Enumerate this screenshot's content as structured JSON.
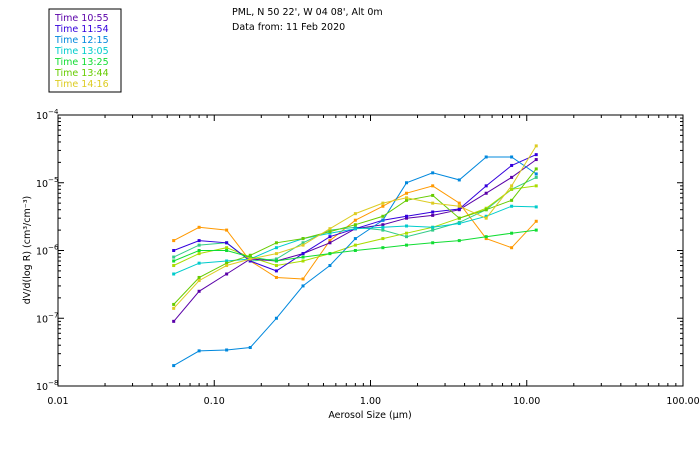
{
  "header": {
    "line1": "PML, N 50 22', W 04 08', Alt 0m",
    "line2": "Data from: 11 Feb 2020"
  },
  "chart_data": {
    "type": "line",
    "xscale": "log",
    "yscale": "log",
    "xlim": [
      0.01,
      100
    ],
    "ylim": [
      1e-08,
      0.0001
    ],
    "xlabel": "Aerosol Size (μm)",
    "ylabel": "dV/d(log R) (cm³/cm⁻³)",
    "xticks": [
      {
        "value": 0.01,
        "label": "0.01"
      },
      {
        "value": 0.1,
        "label": "0.10"
      },
      {
        "value": 1,
        "label": "1.00"
      },
      {
        "value": 10,
        "label": "10.00"
      },
      {
        "value": 100,
        "label": "100.00"
      }
    ],
    "yticks": [
      {
        "value": 1e-08,
        "mant": "10",
        "exp": "−8"
      },
      {
        "value": 1e-07,
        "mant": "10",
        "exp": "−7"
      },
      {
        "value": 1e-06,
        "mant": "10",
        "exp": "−6"
      },
      {
        "value": 1e-05,
        "mant": "10",
        "exp": "−5"
      },
      {
        "value": 0.0001,
        "mant": "10",
        "exp": "−4"
      }
    ],
    "x": [
      0.055,
      0.08,
      0.12,
      0.17,
      0.25,
      0.37,
      0.55,
      0.8,
      1.2,
      1.7,
      2.5,
      3.7,
      5.5,
      8,
      11.5
    ],
    "series": [
      {
        "name": "Time 10:55",
        "color": "#5a00a8",
        "values": [
          9e-08,
          2.5e-07,
          4.5e-07,
          7.5e-07,
          7e-07,
          9e-07,
          1.3e-06,
          2.1e-06,
          2.4e-06,
          3e-06,
          3.3e-06,
          4e-06,
          7e-06,
          1.2e-05,
          2.2e-05
        ]
      },
      {
        "name": "Time 11:54",
        "color": "#3300dd",
        "values": [
          1e-06,
          1.4e-06,
          1.3e-06,
          7e-07,
          5e-07,
          9e-07,
          1.6e-06,
          2.1e-06,
          2.8e-06,
          3.2e-06,
          3.7e-06,
          4.1e-06,
          9e-06,
          1.8e-05,
          2.6e-05
        ]
      },
      {
        "name": "Time 12:15",
        "color": "#0088dd",
        "values": [
          2e-08,
          3.3e-08,
          3.4e-08,
          3.7e-08,
          1e-07,
          3e-07,
          6e-07,
          1.5e-06,
          2.8e-06,
          1e-05,
          1.4e-05,
          1.1e-05,
          2.4e-05,
          2.4e-05,
          1.35e-05
        ]
      },
      {
        "name": "Time 13:05",
        "color": "#00cccc",
        "values": [
          4.5e-07,
          6.5e-07,
          7e-07,
          7.5e-07,
          1.1e-06,
          1.5e-06,
          1.8e-06,
          2.1e-06,
          2.2e-06,
          2.3e-06,
          2.2e-06,
          2.5e-06,
          3.2e-06,
          4.5e-06,
          4.4e-06
        ]
      },
      {
        "name": "Time 13:25",
        "color": "#11dd33",
        "values": [
          7e-07,
          1e-06,
          1e-06,
          8e-07,
          7e-07,
          8e-07,
          9e-07,
          1e-06,
          1.1e-06,
          1.2e-06,
          1.3e-06,
          1.4e-06,
          1.6e-06,
          1.8e-06,
          2e-06
        ]
      },
      {
        "name": "Time 13:44",
        "color": "#66cc00",
        "values": [
          1.6e-07,
          4e-07,
          6.5e-07,
          8.5e-07,
          1.3e-06,
          1.5e-06,
          1.9e-06,
          2.4e-06,
          3.2e-06,
          5.5e-06,
          6.5e-06,
          3e-06,
          4e-06,
          5.5e-06,
          1.6e-05
        ]
      },
      {
        "name": "Time 14:16",
        "color": "#ddcc22",
        "values": [
          1.4e-07,
          3.6e-07,
          6e-07,
          7.5e-07,
          9e-07,
          1.2e-06,
          2.1e-06,
          3.5e-06,
          5e-06,
          6e-06,
          5e-06,
          4.5e-06,
          3e-06,
          9e-06,
          3.5e-05
        ]
      }
    ],
    "extra_lines": [
      {
        "color": "#ff9900",
        "values": [
          1.4e-06,
          2.2e-06,
          2e-06,
          7e-07,
          4e-07,
          3.8e-07,
          1.4e-06,
          2.8e-06,
          4.5e-06,
          7e-06,
          9e-06,
          5e-06,
          1.5e-06,
          1.1e-06,
          2.7e-06
        ]
      },
      {
        "color": "#33cc88",
        "values": [
          8e-07,
          1.2e-06,
          1.3e-06,
          7e-07,
          7.5e-07,
          1.3e-06,
          2e-06,
          2.2e-06,
          2e-06,
          1.6e-06,
          2e-06,
          2.6e-06,
          4e-06,
          8e-06,
          1.2e-05
        ]
      },
      {
        "name": "",
        "color": "#aadd00",
        "values": [
          6e-07,
          9e-07,
          1.1e-06,
          8e-07,
          6e-07,
          7e-07,
          9e-07,
          1.2e-06,
          1.5e-06,
          1.8e-06,
          2.2e-06,
          3e-06,
          4.2e-06,
          8e-06,
          9e-06
        ]
      }
    ]
  }
}
